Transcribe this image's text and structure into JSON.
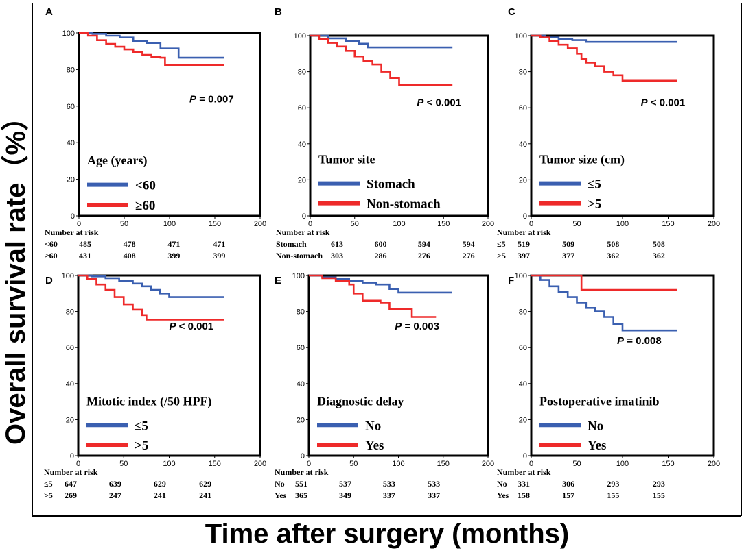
{
  "figure": {
    "y_label": "Overall survival rate（%）",
    "x_label": "Time after surgery (months)"
  },
  "chart_data": [
    {
      "type": "line",
      "panel": "A",
      "legend_title": "Age (years)",
      "p_value": {
        "italic": "P",
        "text": " = 0.007"
      },
      "xlim": [
        0,
        200
      ],
      "ylim": [
        0,
        100
      ],
      "x_ticks": [
        "0",
        "50",
        "100",
        "150",
        "200"
      ],
      "y_ticks": [
        "0",
        "20",
        "40",
        "60",
        "80",
        "100"
      ],
      "series": [
        {
          "name": "<60",
          "color": "#3a5fb0",
          "x": [
            0,
            15,
            30,
            45,
            60,
            75,
            90,
            100,
            110,
            125,
            140,
            160
          ],
          "y": [
            100,
            99.5,
            98.5,
            97.5,
            95.5,
            94.5,
            91.5,
            91.5,
            86.5,
            86.5,
            86.5,
            86.5
          ]
        },
        {
          "name": "≥60",
          "color": "#ee2a2a",
          "x": [
            0,
            10,
            20,
            30,
            40,
            50,
            60,
            70,
            80,
            90,
            95,
            100,
            110,
            130,
            160
          ],
          "y": [
            100,
            98.5,
            96,
            94,
            92.5,
            91,
            89.5,
            88,
            87,
            86.5,
            82.5,
            82.5,
            82.5,
            82.5,
            82.5
          ]
        }
      ],
      "risk_table": {
        "header": "Number at risk",
        "rows": [
          {
            "label": "<60",
            "values": [
              "485",
              "478",
              "471",
              "471"
            ]
          },
          {
            "label": "≥60",
            "values": [
              "431",
              "408",
              "399",
              "399"
            ]
          }
        ]
      }
    },
    {
      "type": "line",
      "panel": "B",
      "legend_title": "Tumor site",
      "p_value": {
        "italic": "P",
        "text": " < 0.001"
      },
      "xlim": [
        0,
        200
      ],
      "ylim": [
        0,
        100
      ],
      "x_ticks": [
        "0",
        "50",
        "100",
        "150",
        "200"
      ],
      "y_ticks": [
        "0",
        "20",
        "40",
        "60",
        "80",
        "100"
      ],
      "series": [
        {
          "name": "Stomach",
          "color": "#3a5fb0",
          "x": [
            0,
            20,
            40,
            55,
            65,
            80,
            100,
            120,
            140,
            160
          ],
          "y": [
            100,
            98.5,
            97,
            95.5,
            93.5,
            93.5,
            93.5,
            93.5,
            93.5,
            93.5
          ]
        },
        {
          "name": "Non-stomach",
          "color": "#ee2a2a",
          "x": [
            0,
            10,
            20,
            30,
            40,
            50,
            60,
            70,
            80,
            90,
            100,
            110,
            130,
            160
          ],
          "y": [
            100,
            98,
            96,
            94,
            91.5,
            88.5,
            86,
            84,
            80,
            76.5,
            72.5,
            72.5,
            72.5,
            72.5
          ]
        }
      ],
      "risk_table": {
        "header": "Number at risk",
        "rows": [
          {
            "label": "Stomach",
            "values": [
              "613",
              "600",
              "594",
              "594"
            ]
          },
          {
            "label": "Non-stomach",
            "values": [
              "303",
              "286",
              "276",
              "276"
            ]
          }
        ]
      }
    },
    {
      "type": "line",
      "panel": "C",
      "legend_title": "Tumor size (cm)",
      "p_value": {
        "italic": "P",
        "text": " < 0.001"
      },
      "xlim": [
        0,
        200
      ],
      "ylim": [
        0,
        100
      ],
      "x_ticks": [
        "0",
        "50",
        "100",
        "150",
        "200"
      ],
      "y_ticks": [
        "0",
        "20",
        "40",
        "60",
        "80",
        "100"
      ],
      "series": [
        {
          "name": "≤5",
          "color": "#3a5fb0",
          "x": [
            0,
            15,
            30,
            45,
            60,
            80,
            100,
            130,
            160
          ],
          "y": [
            100,
            99,
            98,
            97.5,
            96.5,
            96.5,
            96.5,
            96.5,
            96.5
          ]
        },
        {
          "name": ">5",
          "color": "#ee2a2a",
          "x": [
            0,
            10,
            20,
            30,
            40,
            50,
            55,
            60,
            70,
            80,
            90,
            100,
            110,
            130,
            160
          ],
          "y": [
            100,
            99,
            97,
            95,
            93,
            90,
            87,
            85,
            83,
            80,
            78,
            75,
            75,
            75,
            75
          ]
        }
      ],
      "risk_table": {
        "header": "Number at risk",
        "rows": [
          {
            "label": "≤5",
            "values": [
              "519",
              "509",
              "508",
              "508"
            ]
          },
          {
            "label": ">5",
            "values": [
              "397",
              "377",
              "362",
              "362"
            ]
          }
        ]
      }
    },
    {
      "type": "line",
      "panel": "D",
      "legend_title": "Mitotic index (/50 HPF)",
      "p_value": {
        "italic": "P",
        "text": " < 0.001"
      },
      "xlim": [
        0,
        200
      ],
      "ylim": [
        0,
        100
      ],
      "x_ticks": [
        "0",
        "50",
        "100",
        "150",
        "200"
      ],
      "y_ticks": [
        "0",
        "20",
        "40",
        "60",
        "80",
        "100"
      ],
      "series": [
        {
          "name": "≤5",
          "color": "#3a5fb0",
          "x": [
            0,
            15,
            30,
            45,
            60,
            70,
            80,
            90,
            100,
            120,
            140,
            160
          ],
          "y": [
            100,
            99.5,
            98.5,
            97,
            95.5,
            94,
            92,
            90,
            88,
            88,
            88,
            88
          ]
        },
        {
          "name": ">5",
          "color": "#ee2a2a",
          "x": [
            0,
            10,
            20,
            30,
            40,
            50,
            60,
            70,
            75,
            80,
            100,
            130,
            160
          ],
          "y": [
            100,
            98,
            95,
            92,
            88,
            84,
            81,
            78,
            75.5,
            75.5,
            75.5,
            75.5,
            75.5
          ]
        }
      ],
      "risk_table": {
        "header": "Number at risk",
        "rows": [
          {
            "label": "≤5",
            "values": [
              "647",
              "639",
              "629",
              "629"
            ]
          },
          {
            "label": ">5",
            "values": [
              "269",
              "247",
              "241",
              "241"
            ]
          }
        ]
      }
    },
    {
      "type": "line",
      "panel": "E",
      "legend_title": "Diagnostic delay",
      "p_value": {
        "italic": "P",
        "text": " = 0.003"
      },
      "xlim": [
        0,
        200
      ],
      "ylim": [
        0,
        100
      ],
      "x_ticks": [
        "0",
        "50",
        "100",
        "150",
        "200"
      ],
      "y_ticks": [
        "0",
        "20",
        "40",
        "60",
        "80",
        "100"
      ],
      "series": [
        {
          "name": "No",
          "color": "#3a5fb0",
          "x": [
            0,
            15,
            30,
            45,
            60,
            75,
            90,
            100,
            120,
            140,
            160
          ],
          "y": [
            100,
            99,
            98,
            97,
            96,
            95,
            92.5,
            90.5,
            90.5,
            90.5,
            90.5
          ]
        },
        {
          "name": "Yes",
          "color": "#ee2a2a",
          "x": [
            0,
            15,
            30,
            45,
            50,
            60,
            70,
            80,
            90,
            100,
            115,
            125,
            142
          ],
          "y": [
            100,
            98.5,
            97,
            95,
            90,
            86,
            86,
            85,
            81.5,
            81.5,
            77,
            77,
            77
          ]
        }
      ],
      "risk_table": {
        "header": "Number at risk",
        "rows": [
          {
            "label": "No",
            "values": [
              "551",
              "537",
              "533",
              "533"
            ]
          },
          {
            "label": "Yes",
            "values": [
              "365",
              "349",
              "337",
              "337"
            ]
          }
        ]
      }
    },
    {
      "type": "line",
      "panel": "F",
      "legend_title": "Postoperative imatinib",
      "p_value": {
        "italic": "P",
        "text": " = 0.008"
      },
      "xlim": [
        0,
        200
      ],
      "ylim": [
        0,
        100
      ],
      "x_ticks": [
        "0",
        "50",
        "100",
        "150",
        "200"
      ],
      "y_ticks": [
        "0",
        "20",
        "40",
        "60",
        "80",
        "100"
      ],
      "series": [
        {
          "name": "No",
          "color": "#3a5fb0",
          "x": [
            0,
            10,
            20,
            30,
            40,
            50,
            60,
            70,
            80,
            90,
            100,
            110,
            130,
            160
          ],
          "y": [
            100,
            97.5,
            94,
            91,
            88,
            85,
            82,
            80,
            77,
            73,
            69.5,
            69.5,
            69.5,
            69.5
          ]
        },
        {
          "name": "Yes",
          "color": "#ee2a2a",
          "x": [
            0,
            20,
            40,
            50,
            55,
            60,
            80,
            100,
            130,
            160
          ],
          "y": [
            100,
            100,
            100,
            100,
            92,
            92,
            92,
            92,
            92,
            92
          ]
        }
      ],
      "risk_table": {
        "header": "Number at risk",
        "rows": [
          {
            "label": "No",
            "values": [
              "331",
              "306",
              "293",
              "293"
            ]
          },
          {
            "label": "Yes",
            "values": [
              "158",
              "157",
              "155",
              "155"
            ]
          }
        ]
      }
    }
  ]
}
